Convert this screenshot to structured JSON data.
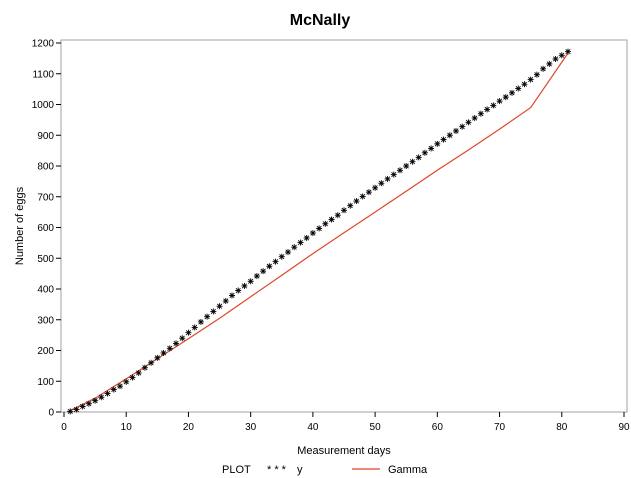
{
  "chart_data": {
    "type": "scatter",
    "title": "McNally",
    "xlabel": "Measurement days",
    "ylabel": "Number of eggs",
    "xlim": [
      0,
      90
    ],
    "ylim": [
      0,
      1200
    ],
    "xticks": [
      0,
      10,
      20,
      30,
      40,
      50,
      60,
      70,
      80,
      90
    ],
    "yticks": [
      0,
      100,
      200,
      300,
      400,
      500,
      600,
      700,
      800,
      900,
      1000,
      1100,
      1200
    ],
    "grid": false,
    "legend": {
      "placement": "bottom",
      "title": "PLOT",
      "entries": [
        {
          "label": "y",
          "marker": "asterisk",
          "symbol": "* * *",
          "color": "#000000"
        },
        {
          "label": "Gamma",
          "marker": "line",
          "color": "#e0452b"
        }
      ]
    },
    "series": [
      {
        "name": "y",
        "kind": "scatter",
        "color": "#000000",
        "x": [
          1,
          2,
          3,
          4,
          5,
          6,
          7,
          8,
          9,
          10,
          11,
          12,
          13,
          14,
          15,
          16,
          17,
          18,
          19,
          20,
          21,
          22,
          23,
          24,
          25,
          26,
          27,
          28,
          29,
          30,
          31,
          32,
          33,
          34,
          35,
          36,
          37,
          38,
          39,
          40,
          41,
          42,
          43,
          44,
          45,
          46,
          47,
          48,
          49,
          50,
          51,
          52,
          53,
          54,
          55,
          56,
          57,
          58,
          59,
          60,
          61,
          62,
          63,
          64,
          65,
          66,
          67,
          68,
          69,
          70,
          71,
          72,
          73,
          74,
          75,
          76,
          77,
          78,
          79,
          80,
          81
        ],
        "y": [
          2,
          8,
          18,
          27,
          37,
          48,
          60,
          73,
          84,
          98,
          112,
          127,
          144,
          160,
          176,
          192,
          207,
          223,
          240,
          258,
          275,
          293,
          310,
          327,
          344,
          361,
          379,
          395,
          410,
          425,
          442,
          458,
          474,
          489,
          505,
          520,
          536,
          551,
          566,
          582,
          597,
          612,
          626,
          640,
          656,
          671,
          686,
          701,
          715,
          729,
          744,
          758,
          772,
          786,
          800,
          814,
          828,
          843,
          857,
          872,
          886,
          900,
          914,
          928,
          942,
          956,
          970,
          984,
          997,
          1011,
          1024,
          1038,
          1052,
          1066,
          1081,
          1097,
          1116,
          1132,
          1148,
          1160,
          1172
        ]
      },
      {
        "name": "Gamma",
        "kind": "line",
        "color": "#e0452b",
        "x": [
          1,
          5,
          10,
          15,
          20,
          25,
          30,
          35,
          40,
          45,
          50,
          55,
          60,
          65,
          70,
          75,
          81
        ],
        "y": [
          5,
          45,
          108,
          173,
          238,
          305,
          375,
          445,
          515,
          583,
          650,
          718,
          786,
          852,
          920,
          990,
          1167
        ]
      }
    ]
  }
}
